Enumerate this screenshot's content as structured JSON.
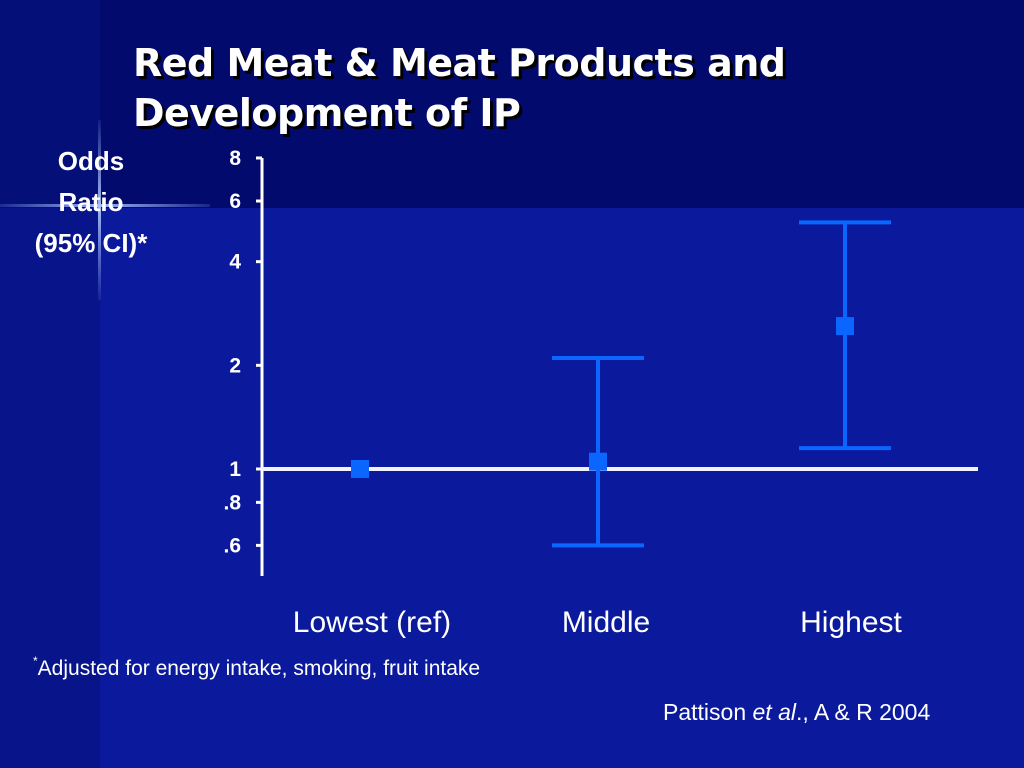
{
  "slide": {
    "title": "Red Meat & Meat Products and Development of IP",
    "footnote_mark": "*",
    "footnote_text": "Adjusted for energy intake, smoking, fruit intake",
    "citation_author": "Pattison ",
    "citation_etal": "et al",
    "citation_rest": "., A & R 2004"
  },
  "colors": {
    "background": "#0b1a9c",
    "marker": "#0a66ff",
    "reference_line": "#f0f0ff",
    "axis": "#ffffff"
  },
  "chart_data": {
    "type": "scatter",
    "subtype": "odds-ratio forest plot with 95% CI error bars",
    "title": "Red Meat & Meat Products and Development of IP",
    "ylabel_lines": [
      "Odds",
      "Ratio",
      "(95% CI)*"
    ],
    "y_scale": "log",
    "ylim": [
      0.55,
      8
    ],
    "y_ticks": [
      {
        "value": 8,
        "label": "8"
      },
      {
        "value": 6,
        "label": "6"
      },
      {
        "value": 4,
        "label": "4"
      },
      {
        "value": 2,
        "label": "2"
      },
      {
        "value": 1,
        "label": "1"
      },
      {
        "value": 0.8,
        "label": ".8"
      },
      {
        "value": 0.6,
        "label": ".6"
      }
    ],
    "reference_line": 1,
    "categories": [
      "Lowest (ref)",
      "Middle",
      "Highest"
    ],
    "odds_ratio": [
      1.0,
      1.05,
      2.6
    ],
    "ci_lower": [
      null,
      0.6,
      1.15
    ],
    "ci_upper": [
      null,
      2.1,
      5.2
    ],
    "grid": false,
    "legend": "none"
  }
}
